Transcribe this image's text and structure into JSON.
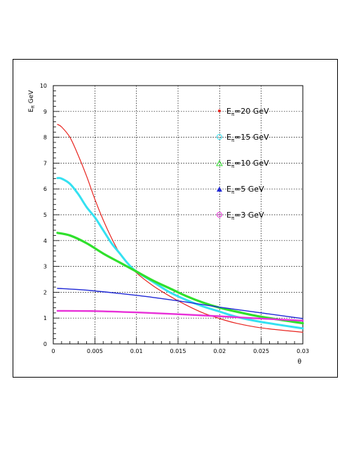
{
  "chart_data": {
    "type": "line",
    "title": "",
    "xlabel": "θ",
    "ylabel": {
      "main": "E",
      "sub": "π",
      "rest": " GeV"
    },
    "xlim": [
      0,
      0.03
    ],
    "ylim": [
      0,
      10
    ],
    "grid": true,
    "legend_position": "right",
    "xticks": [
      0,
      0.005,
      0.01,
      0.015,
      0.02,
      0.025,
      0.03
    ],
    "xtick_labels": [
      "0",
      "0.005",
      "0.01",
      "0.015",
      "0.02",
      "0.025",
      "0.03"
    ],
    "yticks": [
      0,
      1,
      2,
      3,
      4,
      5,
      6,
      7,
      8,
      9,
      10
    ],
    "ytick_labels": [
      "0",
      "1",
      "2",
      "3",
      "4",
      "5",
      "6",
      "7",
      "8",
      "9",
      "10"
    ],
    "series": [
      {
        "name_main": "E",
        "name_sub": "π",
        "name_rest": "=20 GeV",
        "color": "#e8241f",
        "marker": "dot",
        "x": [
          0.0005,
          0.001,
          0.002,
          0.003,
          0.004,
          0.005,
          0.006,
          0.007,
          0.008,
          0.009,
          0.01,
          0.012,
          0.014,
          0.016,
          0.018,
          0.02,
          0.022,
          0.025,
          0.03
        ],
        "y": [
          8.5,
          8.4,
          8.0,
          7.3,
          6.5,
          5.6,
          4.8,
          4.1,
          3.5,
          3.1,
          2.75,
          2.25,
          1.85,
          1.5,
          1.2,
          0.98,
          0.8,
          0.62,
          0.45
        ]
      },
      {
        "name_main": "E",
        "name_sub": "π",
        "name_rest": "=15 GeV",
        "color": "#34e1f1",
        "marker": "circle",
        "x": [
          0.0005,
          0.001,
          0.002,
          0.003,
          0.004,
          0.005,
          0.006,
          0.007,
          0.008,
          0.009,
          0.01,
          0.012,
          0.014,
          0.016,
          0.018,
          0.02,
          0.022,
          0.025,
          0.03
        ],
        "y": [
          6.42,
          6.4,
          6.2,
          5.8,
          5.3,
          4.9,
          4.4,
          3.9,
          3.5,
          3.1,
          2.8,
          2.4,
          2.0,
          1.7,
          1.45,
          1.25,
          1.05,
          0.85,
          0.6
        ]
      },
      {
        "name_main": "E",
        "name_sub": "π",
        "name_rest": "=10 GeV",
        "color": "#2fe02c",
        "marker": "triangle-open",
        "x": [
          0.0005,
          0.002,
          0.004,
          0.006,
          0.008,
          0.01,
          0.012,
          0.014,
          0.016,
          0.018,
          0.02,
          0.022,
          0.025,
          0.03
        ],
        "y": [
          4.3,
          4.2,
          3.9,
          3.5,
          3.15,
          2.8,
          2.45,
          2.15,
          1.85,
          1.6,
          1.4,
          1.25,
          1.05,
          0.8
        ]
      },
      {
        "name_main": "E",
        "name_sub": "π",
        "name_rest": "=5 GeV",
        "color": "#1f28d6",
        "marker": "triangle",
        "x": [
          0.0005,
          0.004,
          0.008,
          0.012,
          0.016,
          0.02,
          0.025,
          0.03
        ],
        "y": [
          2.15,
          2.08,
          1.95,
          1.8,
          1.62,
          1.42,
          1.2,
          0.98
        ]
      },
      {
        "name_main": "E",
        "name_sub": "π",
        "name_rest": "=3 GeV",
        "color": "#e830d8",
        "marker": "circle-dot",
        "x": [
          0.0005,
          0.005,
          0.01,
          0.015,
          0.02,
          0.025,
          0.03
        ],
        "y": [
          1.28,
          1.27,
          1.22,
          1.15,
          1.07,
          0.98,
          0.9
        ]
      }
    ]
  }
}
